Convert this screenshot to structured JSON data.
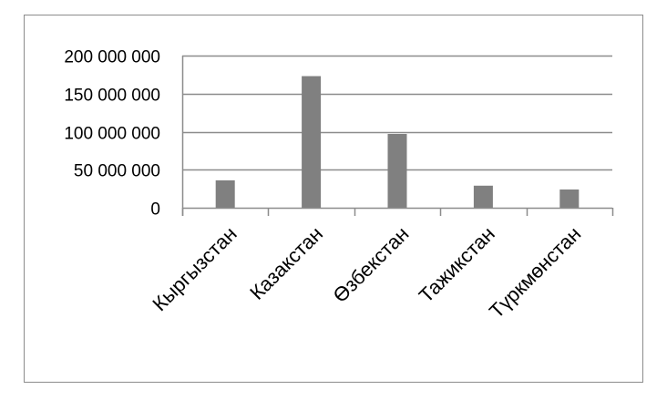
{
  "chart_data": {
    "type": "bar",
    "categories": [
      "Кыргызстан",
      "Казакстан",
      "Өзбекстан",
      "Тажикстан",
      "Түркмөнстан"
    ],
    "values": [
      36000000,
      173000000,
      97000000,
      29000000,
      24000000
    ],
    "ylim": [
      0,
      200000000
    ],
    "yticks": [
      0,
      50000000,
      100000000,
      150000000,
      200000000
    ],
    "ytick_labels": [
      "0",
      "50 000 000",
      "100 000 000",
      "150 000 000",
      "200 000 000"
    ],
    "grid": true,
    "legend": "none",
    "colors": {
      "bar": "#808080",
      "grid": "#8c8c8c",
      "axis": "#8c8c8c",
      "frame": "#8c8c8c"
    }
  }
}
